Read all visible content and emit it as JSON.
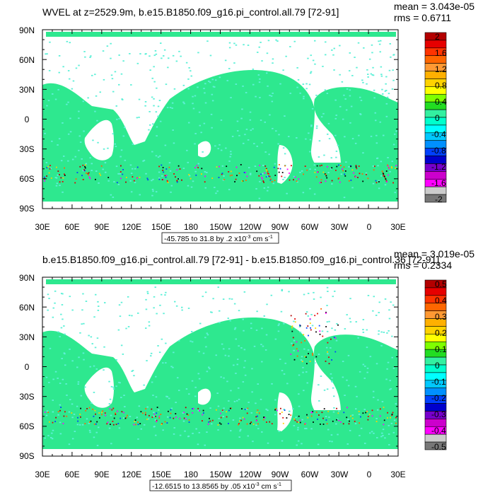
{
  "panels": [
    {
      "title": "WVEL at z=2529.9m, b.e15.B1850.f09_g16.pi_control.all.79 [72-91]",
      "stats": {
        "mean": "mean = 3.043e-05",
        "rms": "rms = 0.6711"
      },
      "contour_info": {
        "prefix": "-45.785 to 31.8 by .2 x10",
        "exp": "-3",
        "unit": " cm s",
        "unit_exp": "-1"
      },
      "lat_labels": [
        "90N",
        "60N",
        "30N",
        "0",
        "30S",
        "60S",
        "90S"
      ],
      "lon_labels": [
        "30E",
        "60E",
        "90E",
        "120E",
        "150E",
        "180",
        "150W",
        "120W",
        "90W",
        "60W",
        "30W",
        "0",
        "30E"
      ],
      "colorbar_labels": [
        "2",
        "1.6",
        "1.2",
        "0.8",
        "0.4",
        "0",
        "-0.4",
        "-0.8",
        "-1.2",
        "-1.6",
        "-2"
      ]
    },
    {
      "title": "b.e15.B1850.f09_g16.pi_control.all.79 [72-91] - b.e15.B1850.f09_g16.pi_control.36 [72-91]",
      "stats": {
        "mean": "mean = 3.019e-05",
        "rms": "rms = 0.2334"
      },
      "contour_info": {
        "prefix": "-12.6515 to 13.8565 by .05 x10",
        "exp": "-3",
        "unit": " cm s",
        "unit_exp": "-1"
      },
      "lat_labels": [
        "90N",
        "60N",
        "30N",
        "0",
        "30S",
        "60S",
        "90S"
      ],
      "lon_labels": [
        "30E",
        "60E",
        "90E",
        "120E",
        "150E",
        "180",
        "150W",
        "120W",
        "90W",
        "60W",
        "30W",
        "0",
        "30E"
      ],
      "colorbar_labels": [
        "0.5",
        "0.4",
        "0.3",
        "0.2",
        "0.1",
        "0",
        "-0.1",
        "-0.2",
        "-0.3",
        "-0.4",
        "-0.5"
      ]
    }
  ],
  "colors": {
    "ocean_main": "#2ee88f",
    "ocean_cyan": "#5ff0d8",
    "colorbar": [
      "#b30000",
      "#e60000",
      "#ff3300",
      "#ff6600",
      "#ff9933",
      "#ffb000",
      "#ffd200",
      "#ffff00",
      "#7fff00",
      "#22dd22",
      "#33f0a0",
      "#00ffcc",
      "#00ffff",
      "#00c8ff",
      "#0090ff",
      "#0040ff",
      "#0000cc",
      "#7700cc",
      "#cc00cc",
      "#ff00ff",
      "#cccccc",
      "#777777"
    ]
  }
}
